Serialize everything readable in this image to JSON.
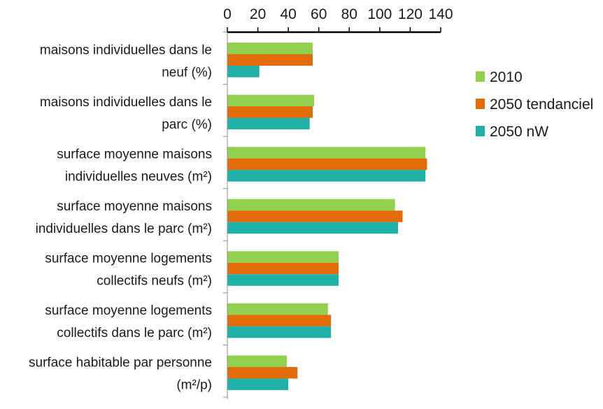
{
  "chart_data": {
    "type": "bar",
    "orientation": "horizontal",
    "title": "",
    "xlabel": "",
    "ylabel": "",
    "xlim": [
      0,
      140
    ],
    "x_ticks": [
      "0",
      "20",
      "40",
      "60",
      "80",
      "100",
      "120",
      "140"
    ],
    "x_axis_position": "top",
    "grid": false,
    "legend_position": "right",
    "categories": [
      [
        "maisons individuelles dans le",
        "neuf (%)"
      ],
      [
        "maisons individuelles dans le",
        "parc (%)"
      ],
      [
        "surface moyenne maisons",
        "individuelles neuves (m²)"
      ],
      [
        "surface moyenne maisons",
        "individuelles dans le parc (m²)"
      ],
      [
        "surface moyenne logements",
        "collectifs neufs (m²)"
      ],
      [
        "surface moyenne logements",
        "collectifs dans le parc (m²)"
      ],
      [
        "surface habitable par personne",
        "(m²/p)"
      ]
    ],
    "series": [
      {
        "name": "2010",
        "color": "#92d050",
        "values": [
          56,
          57,
          130,
          110,
          73,
          66,
          39
        ]
      },
      {
        "name": "2050 tendanciel",
        "color": "#e36c0a",
        "values": [
          56,
          56,
          131,
          115,
          73,
          68,
          46
        ]
      },
      {
        "name": "2050 nW",
        "color": "#1fb0a8",
        "values": [
          21,
          54,
          130,
          112,
          73,
          68,
          40
        ]
      }
    ]
  }
}
